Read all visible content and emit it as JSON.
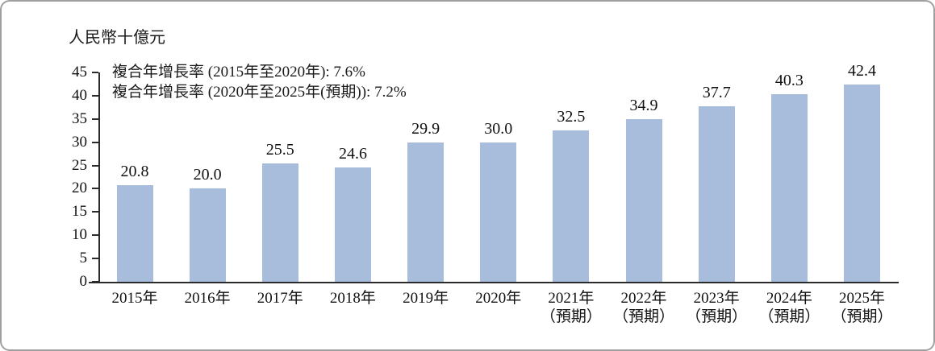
{
  "frame": {
    "background": "#ffffff",
    "border_color": "#a0a0a0"
  },
  "chart_data": {
    "type": "bar",
    "unit_label": "人民幣十億元",
    "annotations": [
      "複合年增長率 (2015年至2020年): 7.6%",
      "複合年增長率 (2020年至2025年(預期)): 7.2%"
    ],
    "categories": [
      "2015年",
      "2016年",
      "2017年",
      "2018年",
      "2019年",
      "2020年",
      "2021年",
      "2022年",
      "2023年",
      "2024年",
      "2025年"
    ],
    "category_sublabels": [
      "",
      "",
      "",
      "",
      "",
      "",
      "（預期）",
      "（預期）",
      "（預期）",
      "（預期）",
      "（預期）"
    ],
    "values": [
      20.8,
      20.0,
      25.5,
      24.6,
      29.9,
      30.0,
      32.5,
      34.9,
      37.7,
      40.3,
      42.4
    ],
    "value_labels": [
      "20.8",
      "20.0",
      "25.5",
      "24.6",
      "29.9",
      "30.0",
      "32.5",
      "34.9",
      "37.7",
      "40.3",
      "42.4"
    ],
    "y_ticks": [
      0,
      5,
      10,
      15,
      20,
      25,
      30,
      35,
      40,
      45
    ],
    "ylim": [
      0,
      45
    ],
    "xlabel": "",
    "ylabel": "人民幣十億元",
    "bar_color": "#A8BDDC",
    "axis_color": "#2b2b2b",
    "grid": false,
    "legend": false
  }
}
